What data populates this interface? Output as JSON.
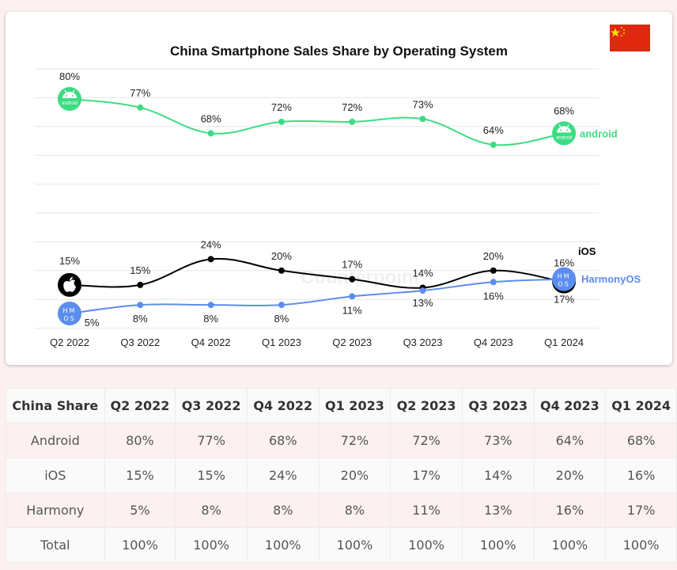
{
  "chart_data": {
    "type": "line",
    "title": "China Smartphone Sales Share by Operating System",
    "categories": [
      "Q2 2022",
      "Q3 2022",
      "Q4 2022",
      "Q1 2023",
      "Q2 2023",
      "Q3 2023",
      "Q4 2023",
      "Q1 2024"
    ],
    "series": [
      {
        "name": "android",
        "color": "#3ddc84",
        "values": [
          80,
          77,
          68,
          72,
          72,
          73,
          64,
          68
        ]
      },
      {
        "name": "iOS",
        "color": "#000000",
        "values": [
          15,
          15,
          24,
          20,
          17,
          14,
          20,
          16
        ]
      },
      {
        "name": "HarmonyOS",
        "color": "#5b8def",
        "values": [
          5,
          8,
          8,
          8,
          11,
          13,
          16,
          17
        ]
      }
    ],
    "xlabel": "",
    "ylabel": "",
    "ylim": [
      0,
      90
    ],
    "grid": true,
    "legend_position": "inline-right",
    "annotations": [
      "android logo markers",
      "apple logo marker",
      "HMOS logo markers",
      "Counterpoint watermark"
    ]
  },
  "flag": {
    "country": "China"
  },
  "table": {
    "headers": [
      "China Share",
      "Q2 2022",
      "Q3 2022",
      "Q4 2022",
      "Q1 2023",
      "Q2 2023",
      "Q3 2023",
      "Q4 2023",
      "Q1 2024"
    ],
    "rows": [
      [
        "Android",
        "80%",
        "77%",
        "68%",
        "72%",
        "72%",
        "73%",
        "64%",
        "68%"
      ],
      [
        "iOS",
        "15%",
        "15%",
        "24%",
        "20%",
        "17%",
        "14%",
        "20%",
        "16%"
      ],
      [
        "Harmony",
        "5%",
        "8%",
        "8%",
        "8%",
        "11%",
        "13%",
        "16%",
        "17%"
      ],
      [
        "Total",
        "100%",
        "100%",
        "100%",
        "100%",
        "100%",
        "100%",
        "100%",
        "100%"
      ]
    ]
  },
  "watermark": "Counterpoint"
}
